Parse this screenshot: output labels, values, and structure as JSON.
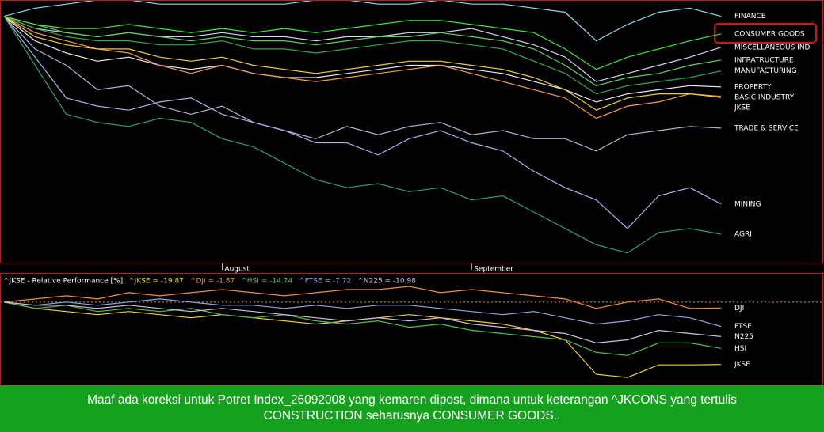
{
  "chart_data": [
    {
      "type": "line",
      "categories": [
        null,
        null,
        null,
        null,
        null,
        null,
        null,
        "August",
        null,
        null,
        null,
        null,
        null,
        null,
        null,
        "September",
        null,
        null,
        null,
        null,
        null,
        null,
        null,
        null
      ],
      "ylim": [
        -60,
        4
      ],
      "series": [
        {
          "name": "FINANCE",
          "color": "#8fd8e8",
          "values": [
            0,
            2,
            3,
            4,
            4,
            3,
            3,
            3,
            3,
            3,
            4,
            4,
            3,
            3,
            4,
            3,
            3,
            2,
            1,
            -6,
            -2,
            1,
            2,
            0
          ]
        },
        {
          "name": "CONSUMER GOODS",
          "color": "#3ee83e",
          "values": [
            0,
            -2,
            -3,
            -3,
            -2,
            -3,
            -4,
            -3,
            -4,
            -3,
            -4,
            -3,
            -2,
            -1,
            -1,
            -2,
            -3,
            -4,
            -8,
            -13,
            -10,
            -8,
            -6,
            -4.3
          ]
        },
        {
          "name": "MISCELLANEOUS IND",
          "color": "#d8d0f0",
          "values": [
            0,
            -3,
            -4,
            -5,
            -4,
            -5,
            -5,
            -4,
            -5,
            -5,
            -6,
            -5,
            -5,
            -4,
            -4,
            -3,
            -5,
            -7,
            -10,
            -16,
            -14,
            -12,
            -10,
            -7.6
          ]
        },
        {
          "name": "INFRATRUCTURE",
          "color": "#5fd35f",
          "values": [
            0,
            -2,
            -4,
            -5,
            -4,
            -5,
            -6,
            -5,
            -6,
            -6,
            -7,
            -6,
            -5,
            -5,
            -4,
            -5,
            -6,
            -8,
            -12,
            -17,
            -15,
            -14,
            -12,
            -10.7
          ]
        },
        {
          "name": "MANUFACTURING",
          "color": "#2fa84a",
          "values": [
            0,
            -3,
            -5,
            -6,
            -6,
            -7,
            -7,
            -6,
            -8,
            -8,
            -9,
            -8,
            -7,
            -6,
            -6,
            -7,
            -8,
            -11,
            -14,
            -19,
            -17,
            -16,
            -15,
            -13.4
          ]
        },
        {
          "name": "PROPERTY",
          "color": "#e8e8f0",
          "values": [
            0,
            -6,
            -9,
            -11,
            -10,
            -12,
            -13,
            -12,
            -14,
            -15,
            -15,
            -14,
            -13,
            -12,
            -12,
            -13,
            -14,
            -16,
            -18,
            -21,
            -19,
            -18,
            -17,
            -17.3
          ]
        },
        {
          "name": "BASIC INDUSTRY",
          "color": "#f0a050",
          "values": [
            0,
            -4,
            -6,
            -8,
            -9,
            -12,
            -14,
            -12,
            -14,
            -15,
            -16,
            -15,
            -14,
            -13,
            -12,
            -14,
            -16,
            -18,
            -20,
            -25,
            -22,
            -21,
            -19,
            -19.6
          ]
        },
        {
          "name": "JKSE",
          "color": "#f0d030",
          "values": [
            0,
            -5,
            -7,
            -8,
            -8,
            -10,
            -11,
            -10,
            -12,
            -13,
            -14,
            -13,
            -12,
            -11,
            -11,
            -12,
            -13,
            -15,
            -18,
            -23,
            -20,
            -19,
            -19,
            -19.87
          ]
        },
        {
          "name": "TRADE & SERVICE",
          "color": "#b8b0d0",
          "values": [
            0,
            -8,
            -12,
            -18,
            -17,
            -22,
            -24,
            -22,
            -26,
            -28,
            -30,
            -27,
            -29,
            -27,
            -26,
            -29,
            -28,
            -30,
            -30,
            -33,
            -29,
            -28,
            -27,
            -27.4
          ]
        },
        {
          "name": "MINING",
          "color": "#a0b8e8",
          "values": [
            0,
            -10,
            -20,
            -22,
            -23,
            -21,
            -20,
            -24,
            -26,
            -28,
            -31,
            -31,
            -34,
            -30,
            -28,
            -31,
            -33,
            -38,
            -42,
            -45,
            -52,
            -44,
            -42,
            -46
          ]
        },
        {
          "name": "AGRI",
          "color": "#30a070",
          "values": [
            0,
            -12,
            -24,
            -26,
            -27,
            -25,
            -26,
            -30,
            -32,
            -36,
            -40,
            -42,
            -41,
            -43,
            -42,
            -45,
            -44,
            -48,
            -52,
            -56,
            -58,
            -53,
            -52,
            -53.4
          ]
        }
      ]
    },
    {
      "type": "line",
      "title": "^JKSE - Relative Performance [%]:",
      "ylim": [
        -26,
        5
      ],
      "baseline": 0,
      "series": [
        {
          "name": "JKSE",
          "legend": "^JKSE = -19.87",
          "color": "#f0d030",
          "values": [
            0,
            -2,
            -3,
            -4,
            -3,
            -4,
            -5,
            -4,
            -5,
            -6,
            -7,
            -6,
            -5,
            -4,
            -5,
            -6,
            -7,
            -9,
            -12,
            -23,
            -24,
            -20,
            -20,
            -19.87
          ]
        },
        {
          "name": "DJI",
          "legend": "^DJI = -1.87",
          "color": "#f09040",
          "values": [
            0,
            1,
            2,
            1,
            3,
            2,
            3,
            4,
            3,
            2,
            3,
            4,
            4,
            5,
            3,
            4,
            3,
            2,
            1,
            -2,
            0,
            1,
            -2,
            -1.87
          ]
        },
        {
          "name": "HSI",
          "legend": "^HSI = -14.74",
          "color": "#50c050",
          "values": [
            0,
            -2,
            -1,
            -3,
            -2,
            -3,
            -2,
            -4,
            -5,
            -4,
            -6,
            -7,
            -6,
            -8,
            -7,
            -9,
            -10,
            -11,
            -12,
            -16,
            -17,
            -13,
            -13,
            -14.74
          ]
        },
        {
          "name": "FTSE",
          "legend": "^FTSE = -7.72",
          "color": "#90a8e0",
          "values": [
            0,
            -1,
            0,
            -1,
            0,
            1,
            0,
            -1,
            -1,
            -2,
            -1,
            -2,
            -1,
            -1,
            -2,
            -3,
            -4,
            -3,
            -5,
            -7,
            -6,
            -4,
            -5,
            -7.72
          ]
        },
        {
          "name": "N225",
          "legend": "^N225 = -10.98",
          "color": "#d0c0e0",
          "values": [
            0,
            -1,
            -1,
            -2,
            -1,
            -2,
            -3,
            -2,
            -3,
            -4,
            -5,
            -6,
            -5,
            -6,
            -5,
            -7,
            -8,
            -9,
            -10,
            -13,
            -12,
            -9,
            -10,
            -10.98
          ]
        }
      ]
    }
  ],
  "caption": [
    "Maaf ada koreksi untuk Potret Index_26092008 yang kemaren dipost, dimana untuk keterangan ^JKCONS yang tertulis",
    "CONSTRUCTION seharusnya CONSUMER GOODS.."
  ]
}
